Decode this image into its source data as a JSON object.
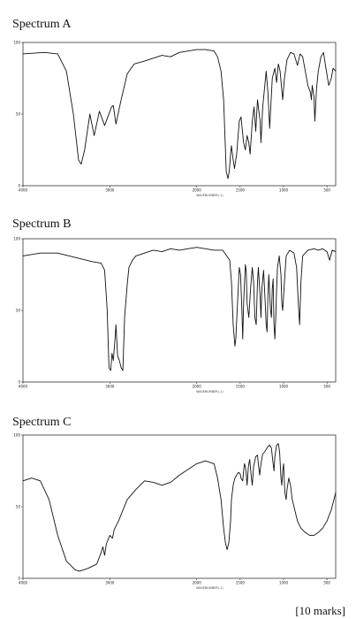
{
  "chart_data": [
    {
      "type": "line",
      "title": "Spectrum A",
      "xlabel": "WAVENUMBER(-1)",
      "xlim": [
        4000,
        400
      ],
      "ylim": [
        0,
        100
      ],
      "x_ticks": [
        4000,
        3000,
        2000,
        1500,
        1000,
        500
      ],
      "y_ticks": [
        0,
        50,
        100
      ],
      "grid": false,
      "points": [
        [
          4000,
          92
        ],
        [
          3750,
          93
        ],
        [
          3600,
          92
        ],
        [
          3500,
          80
        ],
        [
          3420,
          50
        ],
        [
          3360,
          18
        ],
        [
          3330,
          15
        ],
        [
          3290,
          25
        ],
        [
          3230,
          50
        ],
        [
          3180,
          35
        ],
        [
          3120,
          52
        ],
        [
          3060,
          42
        ],
        [
          2980,
          55
        ],
        [
          2960,
          56
        ],
        [
          2930,
          43
        ],
        [
          2870,
          60
        ],
        [
          2800,
          78
        ],
        [
          2720,
          85
        ],
        [
          2600,
          87
        ],
        [
          2500,
          89
        ],
        [
          2400,
          91
        ],
        [
          2300,
          90
        ],
        [
          2200,
          93
        ],
        [
          2100,
          94
        ],
        [
          2000,
          95
        ],
        [
          1900,
          95
        ],
        [
          1800,
          94
        ],
        [
          1760,
          90
        ],
        [
          1720,
          80
        ],
        [
          1690,
          60
        ],
        [
          1660,
          10
        ],
        [
          1640,
          5
        ],
        [
          1625,
          10
        ],
        [
          1610,
          22
        ],
        [
          1600,
          28
        ],
        [
          1585,
          20
        ],
        [
          1565,
          12
        ],
        [
          1540,
          22
        ],
        [
          1510,
          45
        ],
        [
          1490,
          48
        ],
        [
          1460,
          30
        ],
        [
          1440,
          25
        ],
        [
          1420,
          35
        ],
        [
          1400,
          30
        ],
        [
          1385,
          22
        ],
        [
          1360,
          45
        ],
        [
          1340,
          55
        ],
        [
          1320,
          38
        ],
        [
          1300,
          60
        ],
        [
          1270,
          45
        ],
        [
          1260,
          30
        ],
        [
          1240,
          55
        ],
        [
          1200,
          80
        ],
        [
          1180,
          65
        ],
        [
          1160,
          40
        ],
        [
          1130,
          75
        ],
        [
          1100,
          82
        ],
        [
          1080,
          72
        ],
        [
          1060,
          85
        ],
        [
          1040,
          80
        ],
        [
          1010,
          60
        ],
        [
          990,
          75
        ],
        [
          960,
          88
        ],
        [
          920,
          93
        ],
        [
          880,
          92
        ],
        [
          840,
          84
        ],
        [
          810,
          92
        ],
        [
          780,
          90
        ],
        [
          720,
          70
        ],
        [
          690,
          65
        ],
        [
          680,
          60
        ],
        [
          670,
          70
        ],
        [
          650,
          62
        ],
        [
          640,
          45
        ],
        [
          620,
          68
        ],
        [
          600,
          80
        ],
        [
          570,
          90
        ],
        [
          540,
          93
        ],
        [
          520,
          85
        ],
        [
          480,
          70
        ],
        [
          450,
          75
        ],
        [
          430,
          82
        ],
        [
          400,
          80
        ]
      ]
    },
    {
      "type": "line",
      "title": "Spectrum B",
      "xlabel": "WAVENUMBER(-1)",
      "xlim": [
        4000,
        400
      ],
      "ylim": [
        0,
        100
      ],
      "x_ticks": [
        4000,
        3000,
        2000,
        1500,
        1000,
        500
      ],
      "y_ticks": [
        0,
        50,
        100
      ],
      "grid": false,
      "points": [
        [
          4000,
          88
        ],
        [
          3800,
          90
        ],
        [
          3600,
          90
        ],
        [
          3400,
          87
        ],
        [
          3200,
          84
        ],
        [
          3100,
          83
        ],
        [
          3060,
          78
        ],
        [
          3030,
          50
        ],
        [
          3010,
          10
        ],
        [
          2990,
          8
        ],
        [
          2975,
          20
        ],
        [
          2960,
          15
        ],
        [
          2940,
          30
        ],
        [
          2930,
          40
        ],
        [
          2910,
          18
        ],
        [
          2890,
          15
        ],
        [
          2870,
          10
        ],
        [
          2850,
          8
        ],
        [
          2830,
          45
        ],
        [
          2800,
          68
        ],
        [
          2780,
          80
        ],
        [
          2740,
          85
        ],
        [
          2700,
          88
        ],
        [
          2600,
          90
        ],
        [
          2500,
          92
        ],
        [
          2400,
          91
        ],
        [
          2300,
          93
        ],
        [
          2200,
          92
        ],
        [
          2100,
          93
        ],
        [
          2000,
          94
        ],
        [
          1900,
          93
        ],
        [
          1800,
          92
        ],
        [
          1700,
          92
        ],
        [
          1620,
          85
        ],
        [
          1600,
          70
        ],
        [
          1580,
          40
        ],
        [
          1560,
          25
        ],
        [
          1550,
          30
        ],
        [
          1530,
          55
        ],
        [
          1510,
          80
        ],
        [
          1495,
          75
        ],
        [
          1480,
          50
        ],
        [
          1470,
          30
        ],
        [
          1460,
          55
        ],
        [
          1440,
          82
        ],
        [
          1430,
          78
        ],
        [
          1420,
          55
        ],
        [
          1400,
          45
        ],
        [
          1380,
          65
        ],
        [
          1360,
          80
        ],
        [
          1345,
          70
        ],
        [
          1330,
          45
        ],
        [
          1315,
          40
        ],
        [
          1300,
          70
        ],
        [
          1290,
          80
        ],
        [
          1270,
          60
        ],
        [
          1260,
          45
        ],
        [
          1250,
          65
        ],
        [
          1230,
          78
        ],
        [
          1215,
          60
        ],
        [
          1200,
          40
        ],
        [
          1190,
          35
        ],
        [
          1180,
          60
        ],
        [
          1170,
          75
        ],
        [
          1150,
          50
        ],
        [
          1140,
          45
        ],
        [
          1130,
          65
        ],
        [
          1120,
          72
        ],
        [
          1110,
          40
        ],
        [
          1100,
          30
        ],
        [
          1090,
          45
        ],
        [
          1080,
          65
        ],
        [
          1070,
          80
        ],
        [
          1050,
          88
        ],
        [
          1030,
          75
        ],
        [
          1020,
          55
        ],
        [
          1010,
          50
        ],
        [
          990,
          70
        ],
        [
          970,
          88
        ],
        [
          930,
          92
        ],
        [
          880,
          90
        ],
        [
          850,
          80
        ],
        [
          830,
          55
        ],
        [
          815,
          40
        ],
        [
          800,
          70
        ],
        [
          780,
          88
        ],
        [
          720,
          92
        ],
        [
          650,
          93
        ],
        [
          600,
          92
        ],
        [
          550,
          93
        ],
        [
          500,
          91
        ],
        [
          470,
          85
        ],
        [
          440,
          92
        ],
        [
          400,
          91
        ]
      ]
    },
    {
      "type": "line",
      "title": "Spectrum C",
      "xlabel": "WAVENUMBER(-1)",
      "xlim": [
        4000,
        400
      ],
      "ylim": [
        0,
        100
      ],
      "x_ticks": [
        4000,
        3000,
        2000,
        1500,
        1000,
        500
      ],
      "y_ticks": [
        0,
        50,
        100
      ],
      "grid": false,
      "points": [
        [
          4000,
          68
        ],
        [
          3900,
          70
        ],
        [
          3800,
          68
        ],
        [
          3700,
          55
        ],
        [
          3600,
          30
        ],
        [
          3500,
          12
        ],
        [
          3400,
          6
        ],
        [
          3350,
          5
        ],
        [
          3250,
          7
        ],
        [
          3150,
          10
        ],
        [
          3100,
          18
        ],
        [
          3080,
          22
        ],
        [
          3060,
          16
        ],
        [
          3040,
          24
        ],
        [
          3000,
          30
        ],
        [
          2970,
          28
        ],
        [
          2950,
          34
        ],
        [
          2900,
          40
        ],
        [
          2800,
          55
        ],
        [
          2700,
          62
        ],
        [
          2600,
          68
        ],
        [
          2500,
          67
        ],
        [
          2400,
          65
        ],
        [
          2300,
          67
        ],
        [
          2200,
          72
        ],
        [
          2100,
          76
        ],
        [
          2000,
          80
        ],
        [
          1900,
          82
        ],
        [
          1800,
          80
        ],
        [
          1760,
          70
        ],
        [
          1720,
          55
        ],
        [
          1690,
          35
        ],
        [
          1670,
          25
        ],
        [
          1650,
          20
        ],
        [
          1630,
          25
        ],
        [
          1610,
          40
        ],
        [
          1600,
          55
        ],
        [
          1580,
          65
        ],
        [
          1560,
          70
        ],
        [
          1540,
          72
        ],
        [
          1520,
          74
        ],
        [
          1500,
          73
        ],
        [
          1490,
          70
        ],
        [
          1470,
          68
        ],
        [
          1460,
          75
        ],
        [
          1450,
          80
        ],
        [
          1440,
          78
        ],
        [
          1430,
          73
        ],
        [
          1420,
          65
        ],
        [
          1405,
          78
        ],
        [
          1390,
          83
        ],
        [
          1370,
          70
        ],
        [
          1360,
          65
        ],
        [
          1345,
          78
        ],
        [
          1320,
          85
        ],
        [
          1300,
          86
        ],
        [
          1290,
          80
        ],
        [
          1275,
          72
        ],
        [
          1260,
          80
        ],
        [
          1240,
          87
        ],
        [
          1220,
          88
        ],
        [
          1200,
          90
        ],
        [
          1180,
          92
        ],
        [
          1160,
          93
        ],
        [
          1140,
          91
        ],
        [
          1120,
          80
        ],
        [
          1110,
          75
        ],
        [
          1100,
          85
        ],
        [
          1080,
          93
        ],
        [
          1060,
          94
        ],
        [
          1045,
          88
        ],
        [
          1030,
          70
        ],
        [
          1020,
          65
        ],
        [
          1010,
          75
        ],
        [
          1000,
          80
        ],
        [
          985,
          60
        ],
        [
          970,
          55
        ],
        [
          960,
          62
        ],
        [
          940,
          70
        ],
        [
          920,
          65
        ],
        [
          900,
          55
        ],
        [
          880,
          50
        ],
        [
          860,
          45
        ],
        [
          840,
          40
        ],
        [
          800,
          35
        ],
        [
          750,
          32
        ],
        [
          700,
          30
        ],
        [
          650,
          30
        ],
        [
          600,
          32
        ],
        [
          550,
          35
        ],
        [
          500,
          40
        ],
        [
          450,
          48
        ],
        [
          420,
          55
        ],
        [
          400,
          60
        ]
      ]
    }
  ],
  "footer": {
    "marks_label": "[10 marks]"
  }
}
